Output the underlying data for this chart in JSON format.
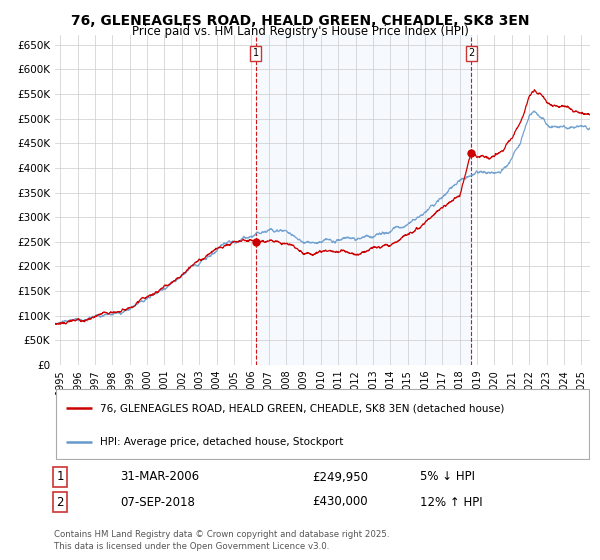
{
  "title": "76, GLENEAGLES ROAD, HEALD GREEN, CHEADLE, SK8 3EN",
  "subtitle": "Price paid vs. HM Land Registry's House Price Index (HPI)",
  "ylabel_ticks": [
    "£0",
    "£50K",
    "£100K",
    "£150K",
    "£200K",
    "£250K",
    "£300K",
    "£350K",
    "£400K",
    "£450K",
    "£500K",
    "£550K",
    "£600K",
    "£650K"
  ],
  "ytick_values": [
    0,
    50000,
    100000,
    150000,
    200000,
    250000,
    300000,
    350000,
    400000,
    450000,
    500000,
    550000,
    600000,
    650000
  ],
  "ylim": [
    0,
    670000
  ],
  "xlim_start": 1994.7,
  "xlim_end": 2025.5,
  "xticks": [
    1995,
    1996,
    1997,
    1998,
    1999,
    2000,
    2001,
    2002,
    2003,
    2004,
    2005,
    2006,
    2007,
    2008,
    2009,
    2010,
    2011,
    2012,
    2013,
    2014,
    2015,
    2016,
    2017,
    2018,
    2019,
    2020,
    2021,
    2022,
    2023,
    2024,
    2025
  ],
  "sale1_x": 2006.25,
  "sale1_y": 249950,
  "sale1_label": "1",
  "sale2_x": 2018.67,
  "sale2_y": 430000,
  "sale2_label": "2",
  "vline1_x": 2006.25,
  "vline2_x": 2018.67,
  "legend_line1": "76, GLENEAGLES ROAD, HEALD GREEN, CHEADLE, SK8 3EN (detached house)",
  "legend_line2": "HPI: Average price, detached house, Stockport",
  "annotation1_num": "1",
  "annotation1_date": "31-MAR-2006",
  "annotation1_price": "£249,950",
  "annotation1_hpi": "5% ↓ HPI",
  "annotation2_num": "2",
  "annotation2_date": "07-SEP-2018",
  "annotation2_price": "£430,000",
  "annotation2_hpi": "12% ↑ HPI",
  "footer": "Contains HM Land Registry data © Crown copyright and database right 2025.\nThis data is licensed under the Open Government Licence v3.0.",
  "line_color_red": "#cc0000",
  "line_color_blue": "#6699cc",
  "shade_color": "#ddeeff",
  "vline_color": "#cc0000",
  "background_color": "#ffffff",
  "grid_color": "#cccccc"
}
